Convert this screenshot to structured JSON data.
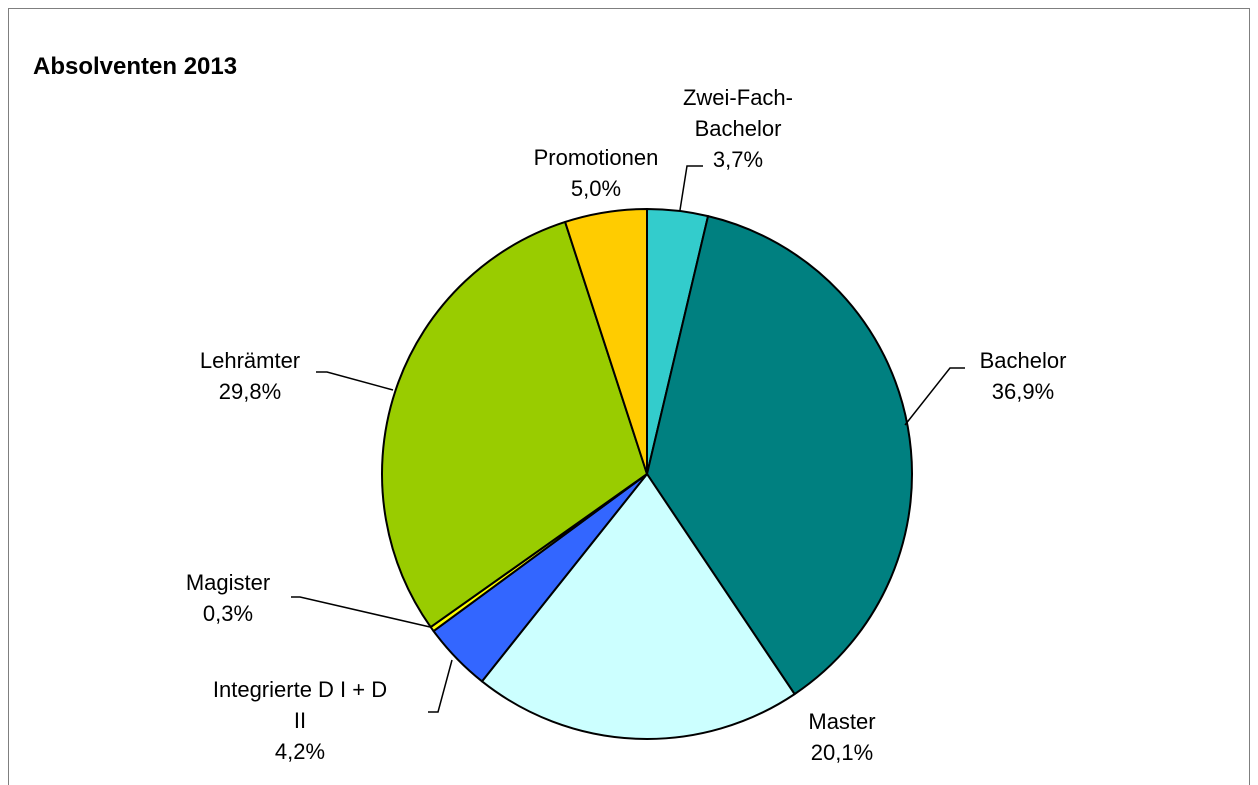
{
  "chart_data": {
    "type": "pie",
    "title": "Absolventen 2013",
    "slices": [
      {
        "label_lines": [
          "Zwei-Fach-",
          "Bachelor"
        ],
        "value": 3.7,
        "value_label": "3,7%",
        "color": "#33CCCC"
      },
      {
        "label_lines": [
          "Bachelor"
        ],
        "value": 36.9,
        "value_label": "36,9%",
        "color": "#008080"
      },
      {
        "label_lines": [
          "Master"
        ],
        "value": 20.1,
        "value_label": "20,1%",
        "color": "#CCFFFF"
      },
      {
        "label_lines": [
          "Integrierte D I + D",
          "II"
        ],
        "value": 4.2,
        "value_label": "4,2%",
        "color": "#3366FF"
      },
      {
        "label_lines": [
          "Magister"
        ],
        "value": 0.3,
        "value_label": "0,3%",
        "color": "#FFFF00"
      },
      {
        "label_lines": [
          "Lehrämter"
        ],
        "value": 29.8,
        "value_label": "29,8%",
        "color": "#99CC00"
      },
      {
        "label_lines": [
          "Promotionen"
        ],
        "value": 5.0,
        "value_label": "5,0%",
        "color": "#FFCC00"
      }
    ]
  }
}
